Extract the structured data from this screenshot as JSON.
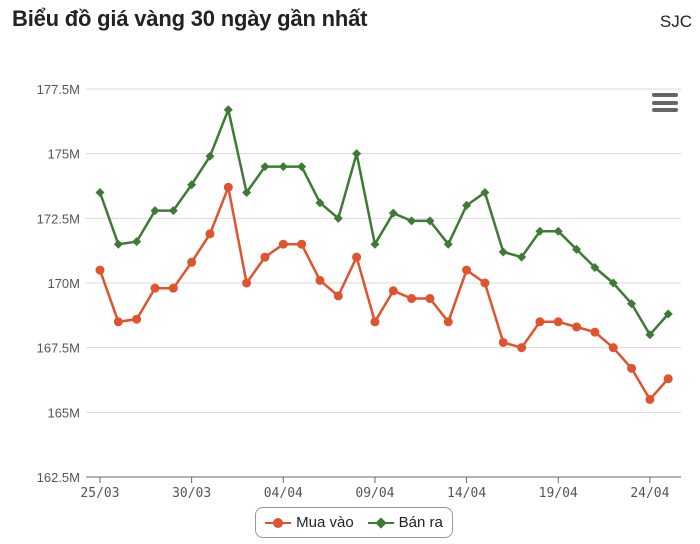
{
  "header": {
    "title": "Biểu đồ giá vàng 30 ngày gần nhất",
    "brand": "SJC"
  },
  "menu": {
    "icon": "hamburger-menu-icon"
  },
  "colors": {
    "buy": "#e0532f",
    "sell": "#3e7a35",
    "grid": "#d9d9d9",
    "axis": "#555555"
  },
  "chart_data": {
    "type": "line",
    "x": [
      "25/03",
      "26/03",
      "27/03",
      "28/03",
      "29/03",
      "30/03",
      "31/03",
      "01/04",
      "02/04",
      "03/04",
      "04/04",
      "05/04",
      "06/04",
      "07/04",
      "08/04",
      "09/04",
      "10/04",
      "11/04",
      "12/04",
      "13/04",
      "14/04",
      "15/04",
      "16/04",
      "17/04",
      "18/04",
      "19/04",
      "20/04",
      "21/04",
      "22/04",
      "23/04",
      "24/04",
      "25/04"
    ],
    "x_tick_labels": [
      "25/03",
      "30/03",
      "04/04",
      "09/04",
      "14/04",
      "19/04",
      "24/04"
    ],
    "y_tick_labels": [
      "162.5M",
      "165M",
      "167.5M",
      "170M",
      "172.5M",
      "175M",
      "177.5M"
    ],
    "ylim": [
      162.5,
      177.5
    ],
    "y_ticks": [
      162.5,
      165,
      167.5,
      170,
      172.5,
      175,
      177.5
    ],
    "series": [
      {
        "name": "Mua vào",
        "marker": "circle",
        "values": [
          170.5,
          168.5,
          168.6,
          169.8,
          169.8,
          170.8,
          171.9,
          173.7,
          170.0,
          171.0,
          171.5,
          171.5,
          170.1,
          169.5,
          171.0,
          168.5,
          169.7,
          169.4,
          169.4,
          168.5,
          170.5,
          170.0,
          167.7,
          167.5,
          168.5,
          168.5,
          168.3,
          168.1,
          167.5,
          166.7,
          165.5,
          166.3
        ]
      },
      {
        "name": "Bán ra",
        "marker": "diamond",
        "values": [
          173.5,
          171.5,
          171.6,
          172.8,
          172.8,
          173.8,
          174.9,
          176.7,
          173.5,
          174.5,
          174.5,
          174.5,
          173.1,
          172.5,
          175.0,
          171.5,
          172.7,
          172.4,
          172.4,
          171.5,
          173.0,
          173.5,
          171.2,
          171.0,
          172.0,
          172.0,
          171.3,
          170.6,
          170.0,
          169.2,
          168.0,
          168.8
        ]
      }
    ]
  },
  "legend": {
    "items": [
      "Mua vào",
      "Bán ra"
    ]
  }
}
